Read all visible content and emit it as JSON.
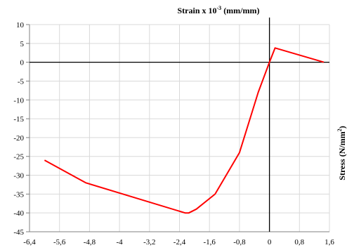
{
  "chart_data": {
    "type": "line",
    "title": "",
    "xlabel": "Strain x 10",
    "xlabel_exponent": "-3",
    "xlabel_suffix": " (mm/mm)",
    "ylabel": "Stress (N/mm",
    "ylabel_exponent": "2",
    "ylabel_suffix": ")",
    "xlim": [
      -6.4,
      1.6
    ],
    "ylim": [
      -45,
      10
    ],
    "x_ticks": [
      -6.4,
      -5.6,
      -4.8,
      -4,
      -3.2,
      -2.4,
      -1.6,
      -0.8,
      0,
      0.8,
      1.6
    ],
    "x_tick_labels": [
      "-6,4",
      "-5,6",
      "-4,8",
      "-4",
      "-3,2",
      "-2,4",
      "-1,6",
      "-0,8",
      "0",
      "0,8",
      "1,6"
    ],
    "y_ticks": [
      10,
      5,
      0,
      -5,
      -10,
      -15,
      -20,
      -25,
      -30,
      -35,
      -40,
      -45
    ],
    "y_tick_labels": [
      "10",
      "5",
      "0",
      "-5",
      "-10",
      "-15",
      "-20",
      "-25",
      "-30",
      "-35",
      "-40",
      "-45"
    ],
    "grid": true,
    "series": [
      {
        "color": "#ff0000",
        "x": [
          -6.0,
          -4.9,
          -2.25,
          -2.15,
          -1.95,
          -1.45,
          -0.8,
          -0.3,
          0.0,
          0.15,
          1.45
        ],
        "y": [
          -26,
          -32,
          -40,
          -40,
          -39,
          -35,
          -24,
          -8,
          0,
          3.8,
          0
        ]
      }
    ]
  }
}
